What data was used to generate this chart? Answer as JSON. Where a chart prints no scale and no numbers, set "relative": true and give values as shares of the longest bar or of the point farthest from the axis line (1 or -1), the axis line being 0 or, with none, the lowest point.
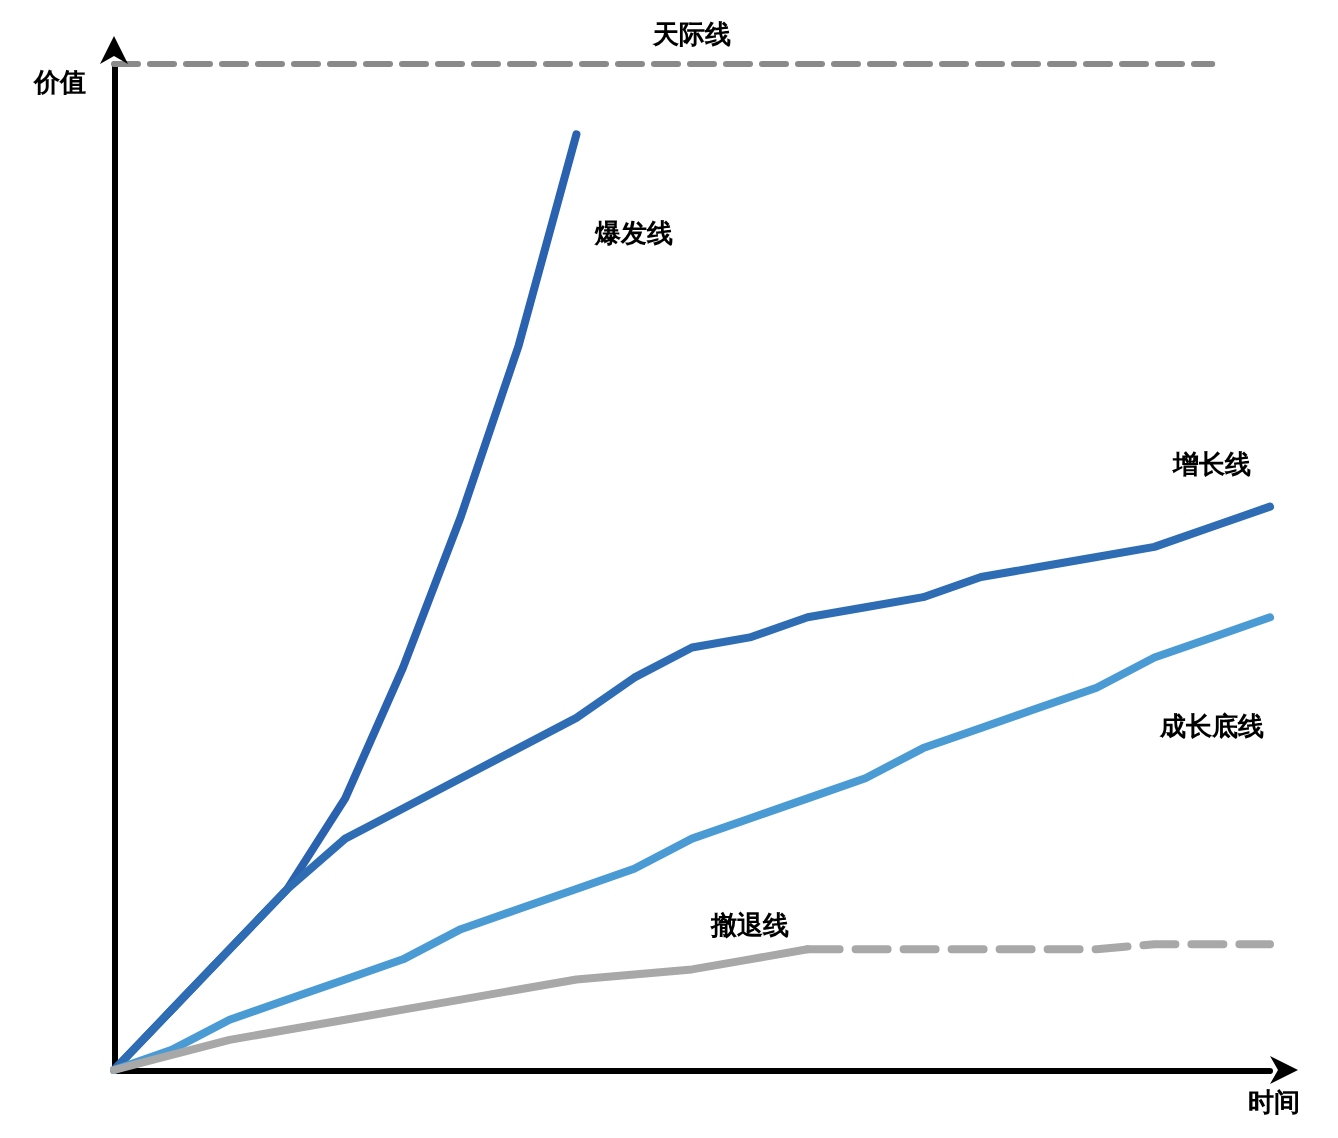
{
  "chart_data": {
    "type": "line",
    "relative": true,
    "xlabel": "时间",
    "ylabel": "价值",
    "categories": [
      null,
      null,
      null,
      null,
      null,
      null,
      null,
      null,
      null,
      null,
      null,
      null,
      null,
      null,
      null,
      null,
      null,
      null,
      null,
      null,
      null
    ],
    "series": [
      {
        "name": "天际线",
        "color": "#8a8a8a",
        "line_style": "dashed",
        "values": [
          1,
          1,
          1,
          1,
          1,
          1,
          1,
          1,
          1,
          1,
          1,
          1,
          1,
          1,
          1,
          1,
          1,
          1,
          1,
          1,
          null
        ]
      },
      {
        "name": "爆发线",
        "color": "#2a62b0",
        "values": [
          0,
          0.06,
          0.12,
          0.18,
          0.27,
          0.4,
          0.55,
          0.72,
          0.93,
          null,
          null,
          null,
          null,
          null,
          null,
          null,
          null,
          null,
          null,
          null,
          null
        ]
      },
      {
        "name": "增长线",
        "color": "#2e6db4",
        "values": [
          0,
          0.06,
          0.12,
          0.18,
          0.23,
          0.26,
          0.29,
          0.32,
          0.35,
          0.39,
          0.42,
          0.43,
          0.45,
          0.46,
          0.47,
          0.49,
          0.5,
          0.51,
          0.52,
          0.54,
          0.56
        ]
      },
      {
        "name": "成长底线",
        "color": "#4a9ad4",
        "values": [
          0,
          0.02,
          0.05,
          0.07,
          0.09,
          0.11,
          0.14,
          0.16,
          0.18,
          0.2,
          0.23,
          0.25,
          0.27,
          0.29,
          0.32,
          0.34,
          0.36,
          0.38,
          0.41,
          0.43,
          0.45
        ]
      },
      {
        "name": "撤退线",
        "color": "#a8a8a8",
        "values": [
          0,
          0.015,
          0.03,
          0.04,
          0.05,
          0.06,
          0.07,
          0.08,
          0.09,
          0.095,
          0.1,
          0.11,
          0.12,
          null,
          null,
          null,
          null,
          null,
          null,
          null,
          null
        ]
      },
      {
        "color": "#a8a8a8",
        "line_style": "dashed",
        "values": [
          null,
          null,
          null,
          null,
          null,
          null,
          null,
          null,
          null,
          null,
          null,
          null,
          0.12,
          0.12,
          0.12,
          0.12,
          0.12,
          0.12,
          0.125,
          0.125,
          0.125
        ]
      }
    ],
    "grid": false,
    "legend": false,
    "marker": "none"
  }
}
